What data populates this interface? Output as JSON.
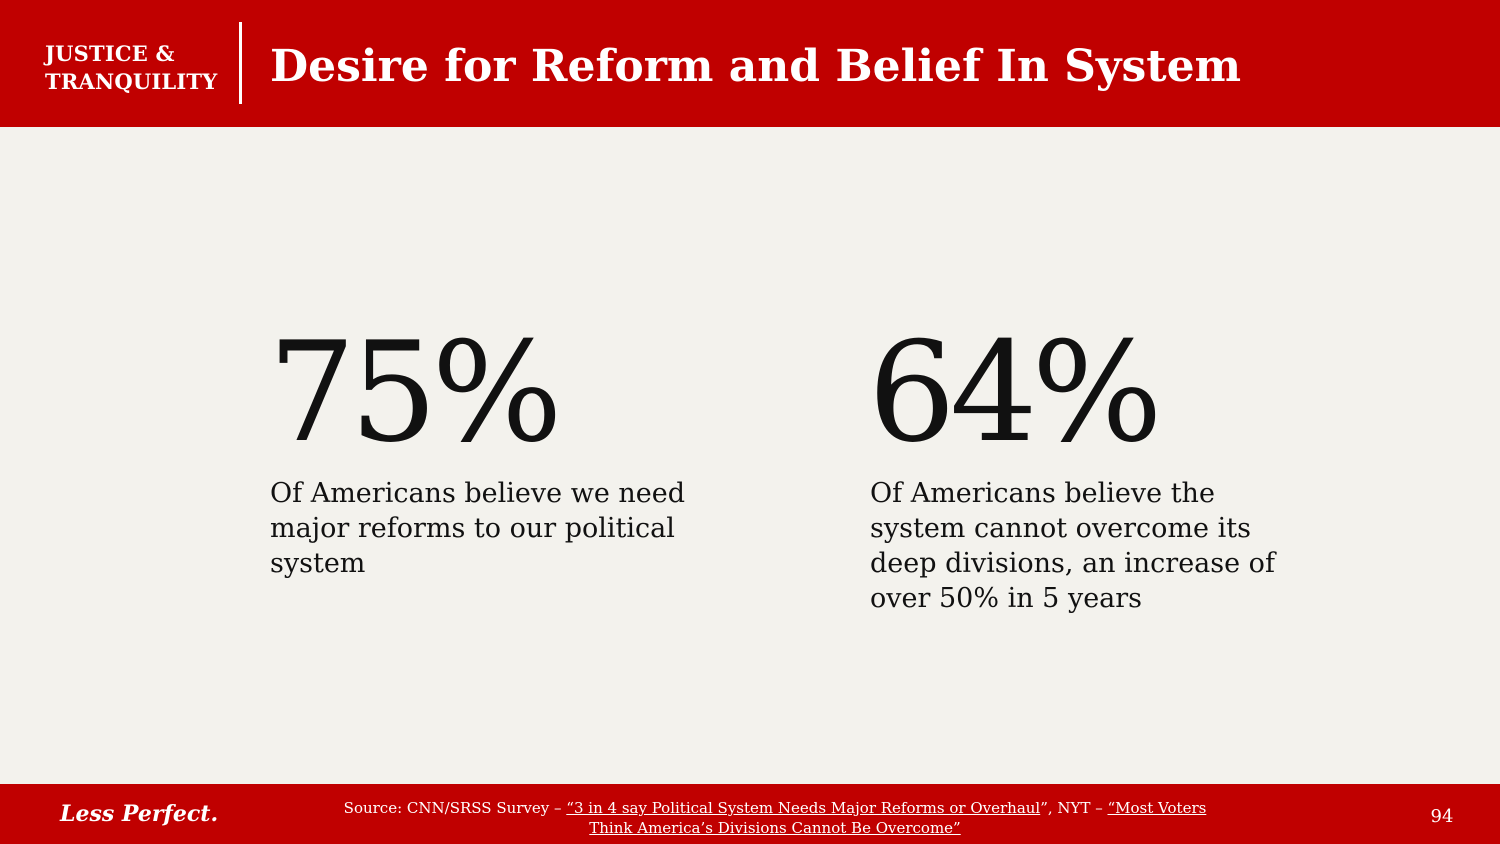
{
  "header": {
    "brand_line1": "JUSTICE &",
    "brand_line2": "TRANQUILITY",
    "title": "Desire for Reform and Belief In System",
    "background_color": "#c00000"
  },
  "stats": [
    {
      "number": "75%",
      "description": "Of Americans believe we need major reforms to our political system"
    },
    {
      "number": "64%",
      "description": "Of Americans believe the system cannot overcome its deep divisions, an increase of over 50% in 5 years"
    }
  ],
  "footer": {
    "tagline": "Less Perfect.",
    "source_prefix": "Source: CNN/SRSS Survey – ",
    "source_link1": "“3 in 4 say Political System Needs Major Reforms or Overhaul",
    "source_middle": "”, NYT – ",
    "source_link2": "“Most Voters Think America’s Divisions Cannot Be Overcome”",
    "page_number": "94",
    "background_color": "#c00000"
  }
}
